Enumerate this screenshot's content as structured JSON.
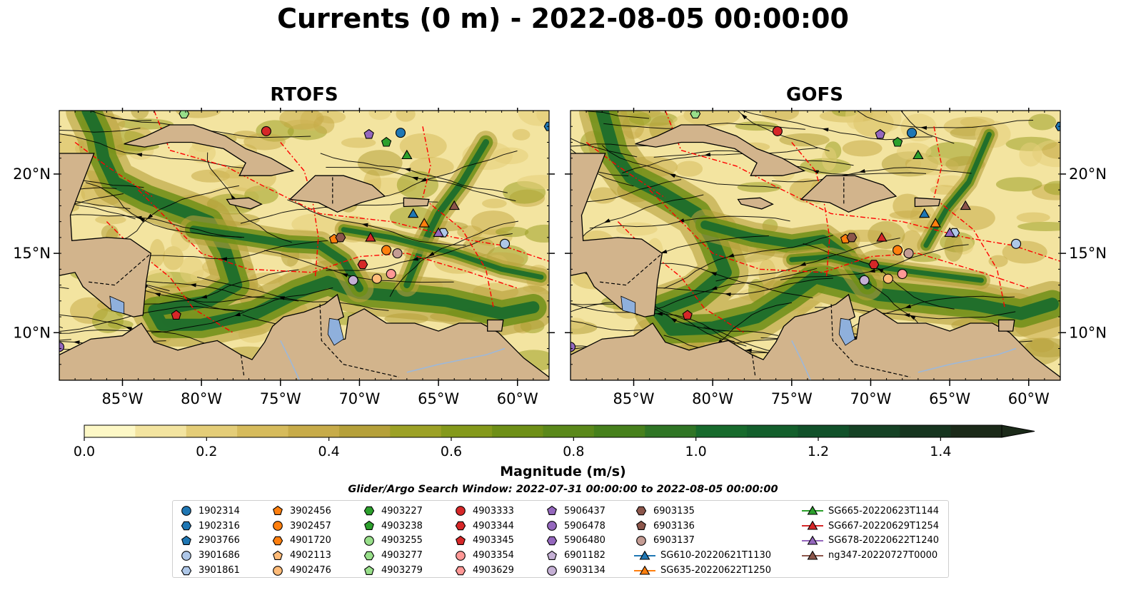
{
  "title": "Currents (0 m) - 2022-08-05 00:00:00",
  "panels": [
    {
      "title": "RTOFS"
    },
    {
      "title": "GOFS"
    }
  ],
  "map_axes": {
    "lat_labels": [
      "20°N",
      "15°N",
      "10°N"
    ],
    "lon_labels": [
      "85°W",
      "80°W",
      "75°W",
      "70°W",
      "65°W",
      "60°W"
    ],
    "lon_range": [
      -89,
      -58
    ],
    "lat_range": [
      7,
      24
    ]
  },
  "colorbar": {
    "label": "Magnitude (m/s)",
    "ticks": [
      "0.0",
      "0.2",
      "0.4",
      "0.6",
      "0.8",
      "1.0",
      "1.2",
      "1.4"
    ],
    "range": [
      0,
      1.5
    ],
    "extend": "max",
    "colors": [
      "#fdf8c6",
      "#f3e4a0",
      "#e4cd78",
      "#d6bb5c",
      "#c7ab49",
      "#b5a03a",
      "#9ca126",
      "#84991b",
      "#6e8f17",
      "#5a881a",
      "#46801c",
      "#2f7525",
      "#176a2c",
      "#135f2c",
      "#11512a",
      "#154225",
      "#16351f",
      "#1b2a19"
    ]
  },
  "search_window": "Glider/Argo Search Window: 2022-07-31 00:00:00 to 2022-08-05 00:00:00",
  "legend": {
    "columns": [
      [
        {
          "label": "1902314",
          "marker": "circle",
          "color": "#1f77b4"
        },
        {
          "label": "1902316",
          "marker": "hexagon",
          "color": "#1f77b4"
        },
        {
          "label": "2903766",
          "marker": "pentagon",
          "color": "#1f77b4"
        },
        {
          "label": "3901686",
          "marker": "circle",
          "color": "#aec7e8"
        },
        {
          "label": "3901861",
          "marker": "hexagon",
          "color": "#aec7e8"
        }
      ],
      [
        {
          "label": "3902456",
          "marker": "pentagon",
          "color": "#ff7f0e"
        },
        {
          "label": "3902457",
          "marker": "circle",
          "color": "#ff7f0e"
        },
        {
          "label": "4901720",
          "marker": "hexagon",
          "color": "#ff7f0e"
        },
        {
          "label": "4902113",
          "marker": "pentagon",
          "color": "#ffbb78"
        },
        {
          "label": "4902476",
          "marker": "circle",
          "color": "#ffbb78"
        }
      ],
      [
        {
          "label": "4903227",
          "marker": "hexagon",
          "color": "#2ca02c"
        },
        {
          "label": "4903238",
          "marker": "pentagon",
          "color": "#2ca02c"
        },
        {
          "label": "4903255",
          "marker": "circle",
          "color": "#98df8a"
        },
        {
          "label": "4903277",
          "marker": "hexagon",
          "color": "#98df8a"
        },
        {
          "label": "4903279",
          "marker": "pentagon",
          "color": "#98df8a"
        }
      ],
      [
        {
          "label": "4903333",
          "marker": "circle",
          "color": "#d62728"
        },
        {
          "label": "4903344",
          "marker": "hexagon",
          "color": "#d62728"
        },
        {
          "label": "4903345",
          "marker": "pentagon",
          "color": "#d62728"
        },
        {
          "label": "4903354",
          "marker": "circle",
          "color": "#ff9896"
        },
        {
          "label": "4903629",
          "marker": "hexagon",
          "color": "#ff9896"
        }
      ],
      [
        {
          "label": "5906437",
          "marker": "pentagon",
          "color": "#9467bd"
        },
        {
          "label": "5906478",
          "marker": "circle",
          "color": "#9467bd"
        },
        {
          "label": "5906480",
          "marker": "hexagon",
          "color": "#9467bd"
        },
        {
          "label": "6901182",
          "marker": "pentagon",
          "color": "#c5b0d5"
        },
        {
          "label": "6903134",
          "marker": "circle",
          "color": "#c5b0d5"
        }
      ],
      [
        {
          "label": "6903135",
          "marker": "hexagon",
          "color": "#8c564b"
        },
        {
          "label": "6903136",
          "marker": "pentagon",
          "color": "#8c564b"
        },
        {
          "label": "6903137",
          "marker": "circle",
          "color": "#c49c94"
        },
        {
          "label": "SG610-20220621T1130",
          "marker": "triangle-line",
          "color": "#1f77b4"
        },
        {
          "label": "SG635-20220622T1250",
          "marker": "triangle-line",
          "color": "#ff7f0e"
        }
      ],
      [
        {
          "label": "SG665-20220623T1144",
          "marker": "triangle-line",
          "color": "#2ca02c"
        },
        {
          "label": "SG667-20220629T1254",
          "marker": "triangle-line",
          "color": "#d62728"
        },
        {
          "label": "SG678-20220622T1240",
          "marker": "triangle-line",
          "color": "#9467bd"
        },
        {
          "label": "ng347-20220727T0000",
          "marker": "triangle-line",
          "color": "#8c564b"
        }
      ]
    ]
  },
  "map_colors": {
    "land": "#d2b48c",
    "border": "#ff0000",
    "lake": "#8fb0dc",
    "river": "#9db8d9"
  },
  "platforms": [
    {
      "id": "1902314",
      "lon": -67.4,
      "lat": 22.6
    },
    {
      "id": "1902316",
      "lon": -58.0,
      "lat": 23.0
    },
    {
      "id": "3901686",
      "lon": -60.8,
      "lat": 15.6
    },
    {
      "id": "3901861",
      "lon": -64.7,
      "lat": 16.3
    },
    {
      "id": "3902456",
      "lon": -71.6,
      "lat": 15.9
    },
    {
      "id": "3902457",
      "lon": -68.3,
      "lat": 15.2
    },
    {
      "id": "4902476",
      "lon": -68.9,
      "lat": 13.4
    },
    {
      "id": "4903238",
      "lon": -68.3,
      "lat": 22.0
    },
    {
      "id": "4903277",
      "lon": -81.1,
      "lat": 23.8
    },
    {
      "id": "4903333",
      "lon": -75.9,
      "lat": 22.7
    },
    {
      "id": "4903344",
      "lon": -69.8,
      "lat": 14.3
    },
    {
      "id": "4903354",
      "lon": -68.0,
      "lat": 13.7
    },
    {
      "id": "5906437",
      "lon": -69.4,
      "lat": 22.5
    },
    {
      "id": "5906478",
      "lon": -89.0,
      "lat": 9.1
    },
    {
      "id": "6903134",
      "lon": -70.4,
      "lat": 13.3
    },
    {
      "id": "6903135",
      "lon": -71.2,
      "lat": 16.0
    },
    {
      "id": "6903137",
      "lon": -67.6,
      "lat": 15.0
    },
    {
      "id": "4903345",
      "lon": -81.6,
      "lat": 11.1
    },
    {
      "id": "SG610-20220621T1130",
      "lon": -66.6,
      "lat": 17.5
    },
    {
      "id": "SG635-20220622T1250",
      "lon": -65.9,
      "lat": 16.9
    },
    {
      "id": "SG665-20220623T1144",
      "lon": -67.0,
      "lat": 21.2
    },
    {
      "id": "SG667-20220629T1254",
      "lon": -69.3,
      "lat": 16.0
    },
    {
      "id": "SG678-20220622T1240",
      "lon": -65.0,
      "lat": 16.3
    },
    {
      "id": "ng347-20220727T0000",
      "lon": -64.0,
      "lat": 18.0
    }
  ]
}
